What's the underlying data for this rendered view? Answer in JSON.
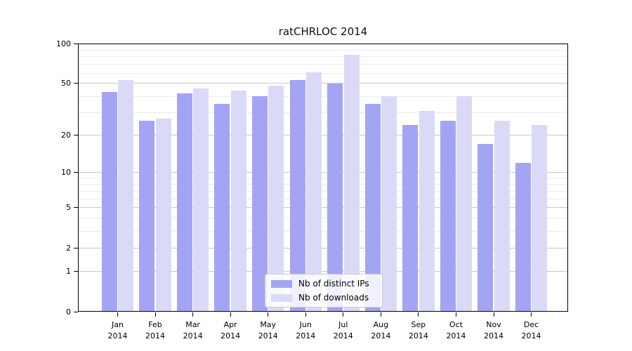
{
  "title": "ratCHRLOC 2014",
  "chart_data": {
    "type": "bar",
    "title": "ratCHRLOC 2014",
    "categories": [
      "Jan 2014",
      "Feb 2014",
      "Mar 2014",
      "Apr 2014",
      "May 2014",
      "Jun 2014",
      "Jul 2014",
      "Aug 2014",
      "Sep 2014",
      "Oct 2014",
      "Nov 2014",
      "Dec 2014"
    ],
    "month_labels": [
      "Jan",
      "Feb",
      "Mar",
      "Apr",
      "May",
      "Jun",
      "Jul",
      "Aug",
      "Sep",
      "Oct",
      "Nov",
      "Dec"
    ],
    "year_label": "2014",
    "series": [
      {
        "name": "Nb of distinct IPs",
        "color": "#a4a4f4",
        "values": [
          43,
          26,
          42,
          35,
          40,
          53,
          50,
          35,
          24,
          26,
          17,
          12
        ]
      },
      {
        "name": "Nb of downloads",
        "color": "#dadaf8",
        "values": [
          53,
          27,
          46,
          44,
          48,
          61,
          83,
          40,
          31,
          40,
          26,
          24
        ]
      }
    ],
    "xlabel": "",
    "ylabel": "",
    "ylim": [
      0,
      100
    ],
    "scale": "log1p",
    "yticks": [
      0,
      1,
      2,
      5,
      10,
      20,
      50,
      100
    ],
    "minor_gridlines": [
      3,
      4,
      6,
      7,
      8,
      9,
      30,
      40,
      60,
      70,
      80,
      90
    ],
    "grid": true,
    "legend_position": "bottom-center"
  }
}
